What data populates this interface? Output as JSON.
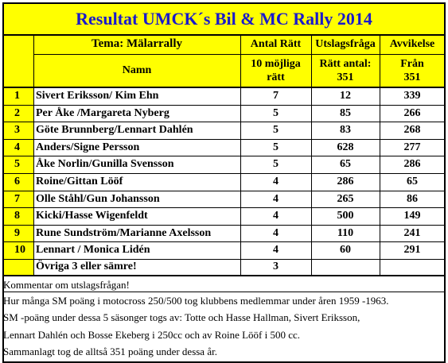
{
  "title": "Resultat UMCK´s Bil & MC Rally 2014",
  "header": {
    "tema": "Tema: Mälarrally",
    "col_antal": "Antal Rätt",
    "col_utslag": "Utslagsfråga",
    "col_avvikelse": "Avvikelse",
    "namn": "Namn",
    "antal_sub_1": "10 möjliga",
    "antal_sub_2": "rätt",
    "utslag_sub_1": "Rätt antal:",
    "utslag_sub_2": "351",
    "avv_sub_1": "Från",
    "avv_sub_2": "351"
  },
  "rows": [
    {
      "rank": "1",
      "name": "Sivert Eriksson/ Kim Ehn",
      "antal": "7",
      "utslag": "12",
      "avvikelse": "339"
    },
    {
      "rank": "2",
      "name": "Per Åke /Margareta Nyberg",
      "antal": "5",
      "utslag": "85",
      "avvikelse": "266"
    },
    {
      "rank": "3",
      "name": "Göte Brunnberg/Lennart Dahlén",
      "antal": "5",
      "utslag": "83",
      "avvikelse": "268"
    },
    {
      "rank": "4",
      "name": "Anders/Signe Persson",
      "antal": "5",
      "utslag": "628",
      "avvikelse": "277"
    },
    {
      "rank": "5",
      "name": "Åke Norlin/Gunilla Svensson",
      "antal": "5",
      "utslag": "65",
      "avvikelse": "286"
    },
    {
      "rank": "6",
      "name": "Roine/Gittan Lööf",
      "antal": "4",
      "utslag": "286",
      "avvikelse": "65"
    },
    {
      "rank": "7",
      "name": "Olle Ståhl/Gun Johansson",
      "antal": "4",
      "utslag": "265",
      "avvikelse": "86"
    },
    {
      "rank": "8",
      "name": "Kicki/Hasse Wigenfeldt",
      "antal": "4",
      "utslag": "500",
      "avvikelse": "149"
    },
    {
      "rank": "9",
      "name": "Rune Sundström/Marianne Axelsson",
      "antal": "4",
      "utslag": "110",
      "avvikelse": "241"
    },
    {
      "rank": "10",
      "name": "Lennart / Monica Lidén",
      "antal": "4",
      "utslag": "60",
      "avvikelse": "291"
    }
  ],
  "ovriga": {
    "name": "Övriga 3 eller sämre!",
    "antal": "3"
  },
  "comments": [
    "Kommentar om utslagsfrågan!",
    "Hur många SM poäng i motocross 250/500 tog klubbens medlemmar under åren 1959 -1963.",
    "SM -poäng under dessa 5 säsonger togs av: Totte och Hasse Hallman, Sivert Eriksson,",
    "Lennart Dahlén och Bosse Ekeberg i 250cc och av Roine Lööf i 500 cc.",
    "Sammanlagt tog de alltså 351 poäng under dessa år."
  ],
  "colors": {
    "highlight": "#ffff00",
    "title": "#1a1acc",
    "grid": "#000000"
  }
}
